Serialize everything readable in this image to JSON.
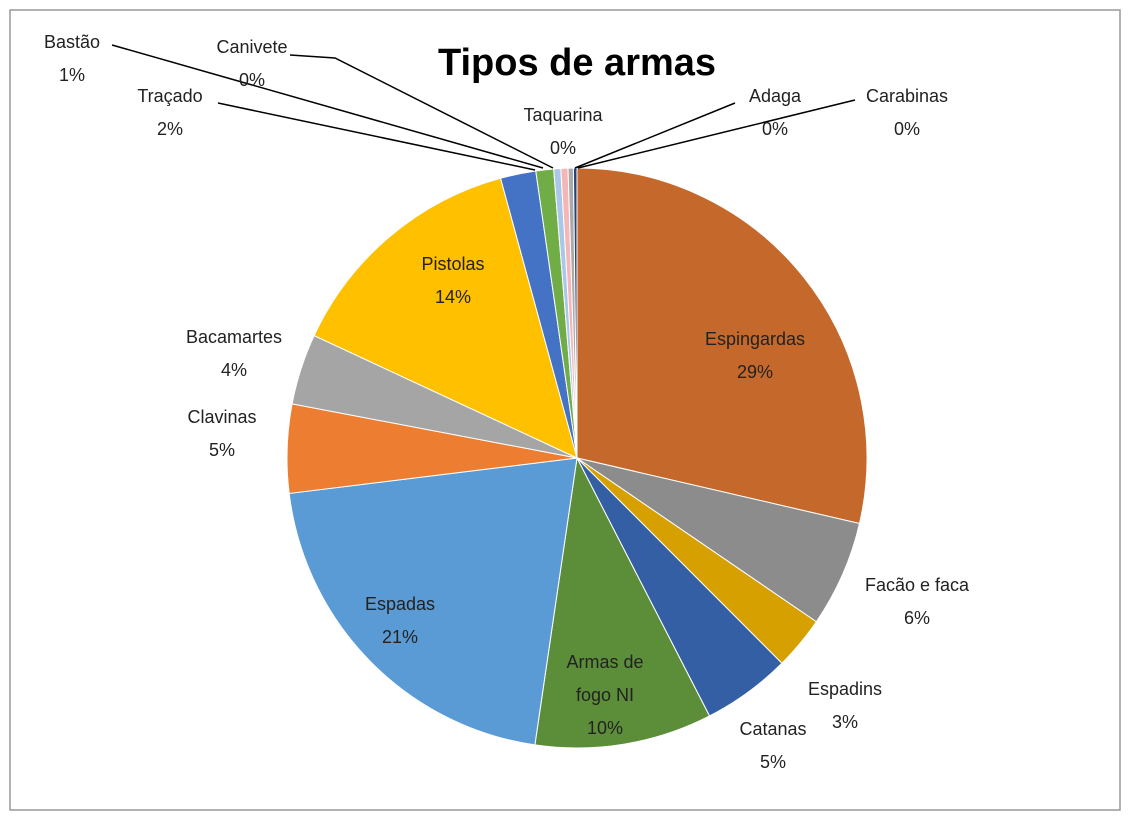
{
  "chart_data": {
    "type": "pie",
    "title": "Tipos de armas",
    "categories": [
      "Espingardas",
      "Facão e faca",
      "Espadins",
      "Catanas",
      "Armas de fogo NI",
      "Espadas",
      "Clavinas",
      "Bacamartes",
      "Pistolas",
      "Traçado",
      "Bastão",
      "Canivete",
      "Taquarina",
      "Adaga",
      "Carabinas"
    ],
    "values": [
      29,
      6,
      3,
      5,
      10,
      21,
      5,
      4,
      14,
      2,
      1,
      0.4,
      0.4,
      0.3,
      0.2
    ],
    "value_labels": [
      "29%",
      "6%",
      "3%",
      "5%",
      "10%",
      "21%",
      "5%",
      "4%",
      "14%",
      "2%",
      "1%",
      "0%",
      "0%",
      "0%",
      "0%"
    ],
    "colors": [
      "#c5682b",
      "#8c8c8c",
      "#d6a000",
      "#355fa5",
      "#5c8e3a",
      "#5b9bd5",
      "#ed7d31",
      "#a5a5a5",
      "#ffc000",
      "#4472c4",
      "#70ad47",
      "#a9c7e8",
      "#f4b6b6",
      "#aaaaaa",
      "#264478"
    ]
  }
}
